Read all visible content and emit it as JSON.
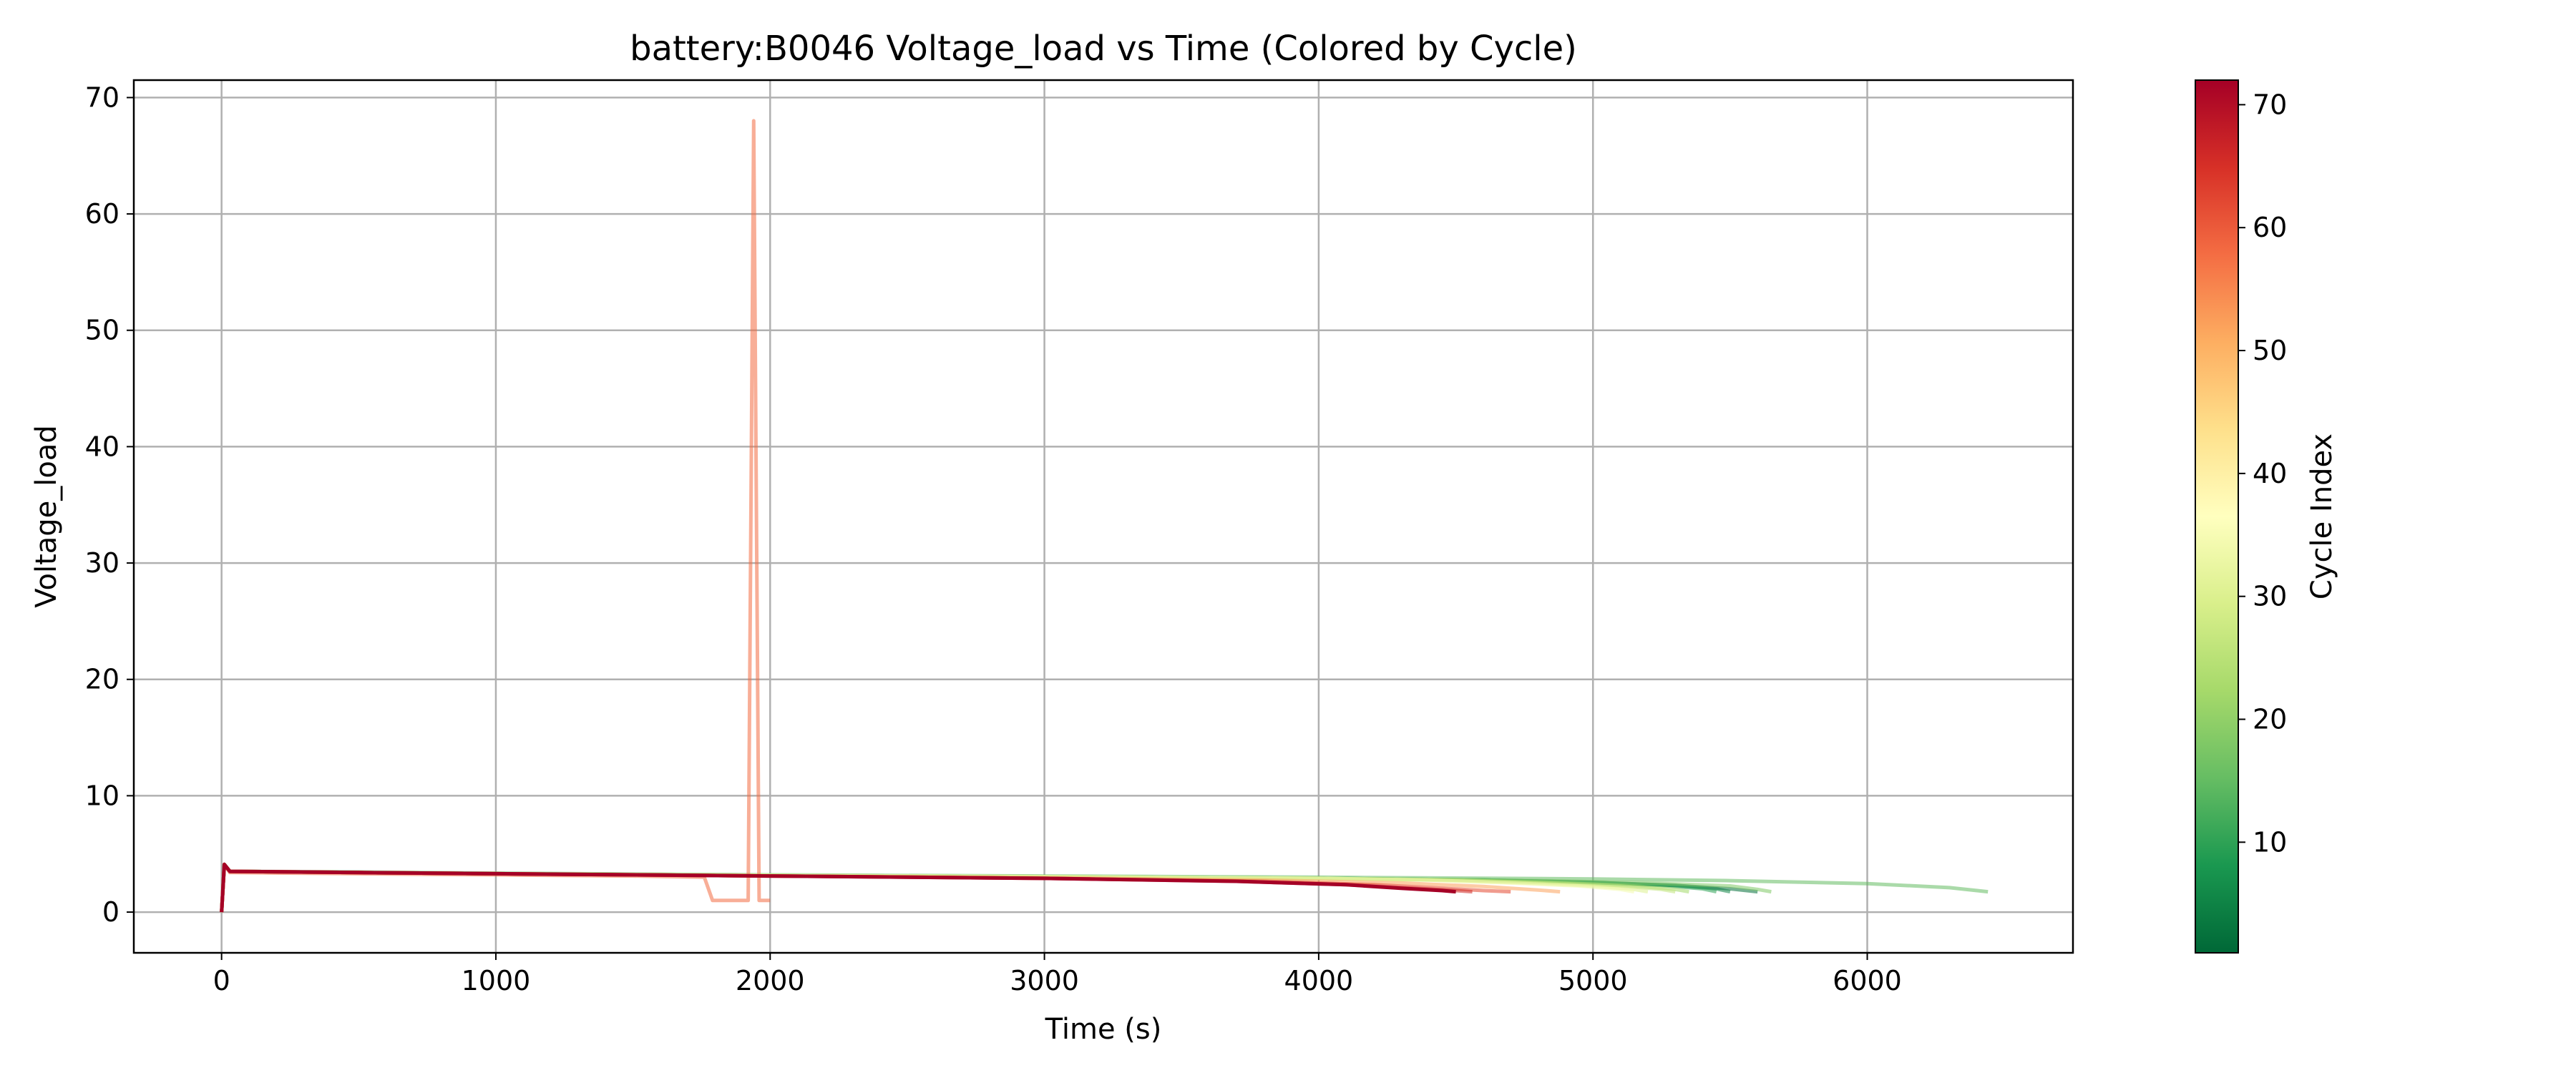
{
  "chart_data": {
    "type": "line",
    "title": "battery:B0046 Voltage_load vs Time (Colored by Cycle)",
    "xlabel": "Time (s)",
    "ylabel": "Voltage_load",
    "xlim": [
      -320,
      6750
    ],
    "ylim": [
      -3.5,
      71.5
    ],
    "xticks": [
      0,
      1000,
      2000,
      3000,
      4000,
      5000,
      6000
    ],
    "yticks": [
      0,
      10,
      20,
      30,
      40,
      50,
      60,
      70
    ],
    "grid": true,
    "colormap": "RdYlGn_r",
    "colorbar": {
      "label": "Cycle Index",
      "min": 1,
      "max": 72,
      "ticks": [
        10,
        20,
        30,
        40,
        50,
        60,
        70
      ]
    },
    "series": [
      {
        "cycle": 2,
        "x": [
          0,
          10,
          30,
          500,
          1000,
          2000,
          3000,
          4000,
          4600,
          5000,
          5300,
          5500,
          5600
        ],
        "y": [
          0,
          4.1,
          3.5,
          3.4,
          3.3,
          3.15,
          3.05,
          2.9,
          2.75,
          2.55,
          2.3,
          2.0,
          1.75
        ]
      },
      {
        "cycle": 5,
        "x": [
          0,
          10,
          30,
          500,
          1000,
          2000,
          3000,
          4000,
          4600,
          5000,
          5300,
          5450,
          5500
        ],
        "y": [
          0,
          4.1,
          3.5,
          3.4,
          3.3,
          3.15,
          3.05,
          2.9,
          2.75,
          2.55,
          2.3,
          2.0,
          1.75
        ]
      },
      {
        "cycle": 10,
        "x": [
          0,
          10,
          30,
          500,
          1000,
          2000,
          3000,
          4000,
          4600,
          5000,
          5250,
          5400,
          5450
        ],
        "y": [
          0,
          4.1,
          3.5,
          3.4,
          3.3,
          3.15,
          3.05,
          2.9,
          2.75,
          2.55,
          2.3,
          2.0,
          1.75
        ]
      },
      {
        "cycle": 15,
        "x": [
          0,
          10,
          30,
          500,
          1000,
          2000,
          3000,
          4000,
          5000,
          5500,
          6000,
          6300,
          6440
        ],
        "y": [
          0,
          4.1,
          3.5,
          3.45,
          3.35,
          3.2,
          3.1,
          3.0,
          2.85,
          2.7,
          2.45,
          2.1,
          1.75
        ]
      },
      {
        "cycle": 18,
        "x": [
          0,
          10,
          30,
          500,
          1000,
          2000,
          3000,
          4000,
          4800,
          5200,
          5500,
          5600,
          5650
        ],
        "y": [
          0,
          4.1,
          3.5,
          3.4,
          3.3,
          3.15,
          3.05,
          2.9,
          2.7,
          2.5,
          2.25,
          1.95,
          1.75
        ]
      },
      {
        "cycle": 22,
        "x": [
          0,
          10,
          30,
          500,
          1000,
          2000,
          3000,
          4000,
          4500,
          4900,
          5150,
          5300,
          5350
        ],
        "y": [
          0,
          4.1,
          3.5,
          3.4,
          3.3,
          3.15,
          3.05,
          2.9,
          2.75,
          2.5,
          2.25,
          1.95,
          1.75
        ]
      },
      {
        "cycle": 26,
        "x": [
          0,
          10,
          30,
          500,
          1000,
          2000,
          3000,
          4000,
          4500,
          4850,
          5100,
          5250,
          5300
        ],
        "y": [
          0,
          4.1,
          3.5,
          3.4,
          3.3,
          3.15,
          3.05,
          2.9,
          2.75,
          2.5,
          2.25,
          1.95,
          1.75
        ]
      },
      {
        "cycle": 30,
        "x": [
          0,
          10,
          30,
          500,
          1000,
          2000,
          3000,
          4000,
          4400,
          4750,
          5000,
          5150,
          5200
        ],
        "y": [
          0,
          4.1,
          3.5,
          3.4,
          3.3,
          3.15,
          3.05,
          2.9,
          2.75,
          2.5,
          2.25,
          1.95,
          1.75
        ]
      },
      {
        "cycle": 34,
        "x": [
          0,
          10,
          30,
          500,
          1000,
          2000,
          3000,
          4000,
          4400,
          4700,
          4950,
          5100,
          5150
        ],
        "y": [
          0,
          4.1,
          3.5,
          3.4,
          3.3,
          3.15,
          3.05,
          2.9,
          2.75,
          2.5,
          2.25,
          1.95,
          1.75
        ]
      },
      {
        "cycle": 52,
        "x": [
          0,
          10,
          30,
          500,
          1000,
          2000,
          3000,
          3800,
          4300,
          4600,
          4800,
          4880
        ],
        "y": [
          0,
          4.1,
          3.5,
          3.4,
          3.3,
          3.1,
          2.95,
          2.75,
          2.5,
          2.2,
          1.9,
          1.75
        ]
      },
      {
        "cycle": 58,
        "x": [
          0,
          10,
          30,
          500,
          1000,
          1500,
          1760,
          1790,
          1920,
          1940,
          1960,
          1980,
          2000
        ],
        "y": [
          0,
          4.1,
          3.4,
          3.3,
          3.2,
          3.1,
          3.0,
          1.0,
          1.0,
          68.0,
          1.0,
          1.0,
          1.0
        ]
      },
      {
        "cycle": 62,
        "x": [
          0,
          10,
          30,
          500,
          1000,
          2000,
          3000,
          3800,
          4200,
          4450,
          4600,
          4700
        ],
        "y": [
          0,
          4.1,
          3.5,
          3.4,
          3.3,
          3.1,
          2.9,
          2.65,
          2.35,
          2.05,
          1.85,
          1.75
        ]
      },
      {
        "cycle": 66,
        "x": [
          0,
          10,
          30,
          500,
          1000,
          2000,
          3000,
          3700,
          4100,
          4350,
          4500,
          4560
        ],
        "y": [
          0,
          4.1,
          3.5,
          3.4,
          3.3,
          3.1,
          2.9,
          2.65,
          2.35,
          2.05,
          1.85,
          1.75
        ]
      },
      {
        "cycle": 72,
        "x": [
          0,
          10,
          30,
          500,
          1000,
          2000,
          3000,
          3700,
          4100,
          4300,
          4450,
          4500
        ],
        "y": [
          0,
          4.1,
          3.5,
          3.4,
          3.3,
          3.1,
          2.9,
          2.65,
          2.35,
          2.05,
          1.85,
          1.75
        ]
      }
    ]
  }
}
